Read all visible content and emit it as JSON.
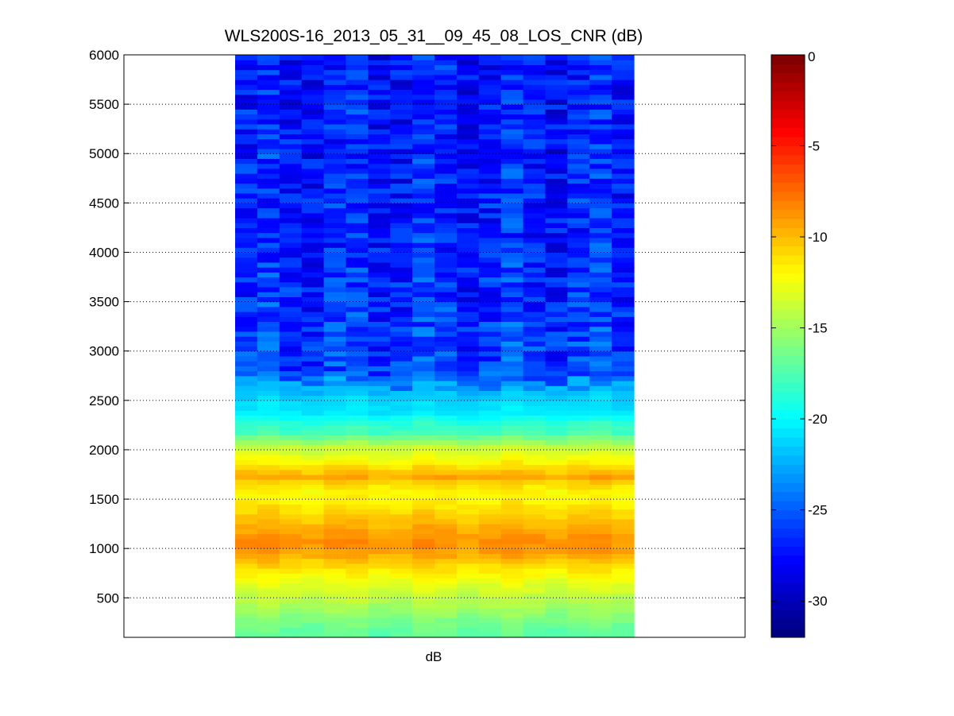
{
  "chart_data": {
    "type": "heatmap",
    "title": "WLS200S-16_2013_05_31__09_45_08_LOS_CNR (dB)",
    "xlabel": "dB",
    "ylabel": "",
    "ylim": [
      100,
      6000
    ],
    "y_ticks": [
      500,
      1000,
      1500,
      2000,
      2500,
      3000,
      3500,
      4000,
      4500,
      5000,
      5500,
      6000
    ],
    "grid": "horizontal-dotted",
    "columns": 18,
    "colormap": "jet",
    "colorbar": {
      "min": -32,
      "max": 0,
      "ticks": [
        0,
        -5,
        -10,
        -15,
        -20,
        -25,
        -30
      ]
    },
    "profile": [
      {
        "y": 150,
        "value": -17.0
      },
      {
        "y": 300,
        "value": -15.8
      },
      {
        "y": 450,
        "value": -14.5
      },
      {
        "y": 600,
        "value": -13.2
      },
      {
        "y": 750,
        "value": -11.8
      },
      {
        "y": 850,
        "value": -10.5
      },
      {
        "y": 950,
        "value": -9.2
      },
      {
        "y": 1050,
        "value": -8.4
      },
      {
        "y": 1150,
        "value": -8.8
      },
      {
        "y": 1250,
        "value": -9.8
      },
      {
        "y": 1350,
        "value": -10.6
      },
      {
        "y": 1450,
        "value": -11.4
      },
      {
        "y": 1550,
        "value": -12.0
      },
      {
        "y": 1650,
        "value": -11.0
      },
      {
        "y": 1725,
        "value": -9.3
      },
      {
        "y": 1800,
        "value": -10.6
      },
      {
        "y": 1900,
        "value": -12.2
      },
      {
        "y": 2025,
        "value": -13.8
      },
      {
        "y": 2175,
        "value": -17.8
      },
      {
        "y": 2275,
        "value": -18.6
      },
      {
        "y": 2375,
        "value": -20.6
      },
      {
        "y": 2450,
        "value": -21.0
      },
      {
        "y": 2550,
        "value": -21.5
      },
      {
        "y": 2800,
        "value": -25.8
      },
      {
        "y": 3200,
        "value": -26.2
      },
      {
        "y": 3600,
        "value": -26.6
      },
      {
        "y": 4000,
        "value": -27.0
      },
      {
        "y": 4400,
        "value": -27.0
      },
      {
        "y": 4800,
        "value": -27.0
      },
      {
        "y": 5200,
        "value": -27.2
      },
      {
        "y": 5600,
        "value": -27.2
      },
      {
        "y": 5950,
        "value": -27.4
      }
    ],
    "upper_noise_range_db": [
      -31,
      -22
    ]
  }
}
